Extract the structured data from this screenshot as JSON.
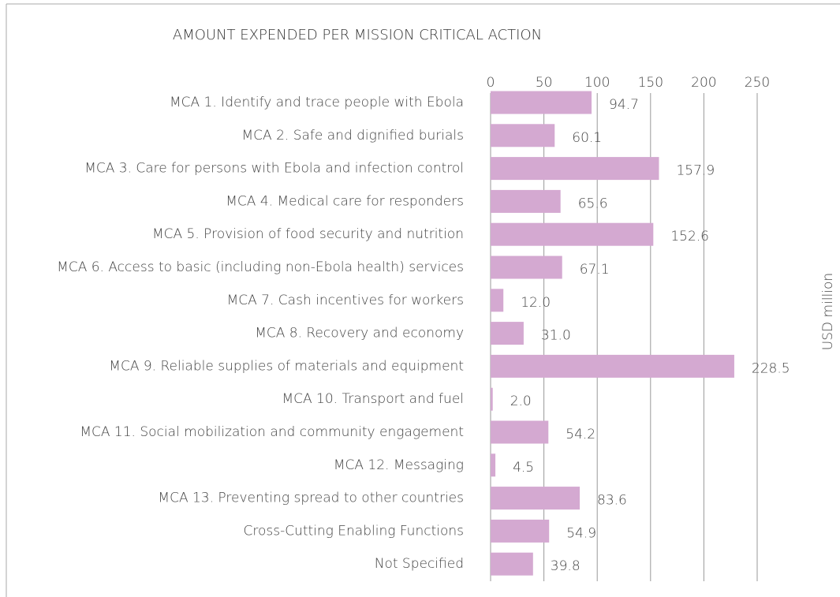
{
  "chart_data": {
    "type": "bar",
    "orientation": "horizontal",
    "title": "AMOUNT EXPENDED PER MISSION CRITICAL ACTION",
    "y_axis_label": "USD million",
    "categories": [
      "MCA 1. Identify and trace people with Ebola",
      "MCA 2. Safe and dignified burials",
      "MCA 3. Care for persons with Ebola and infection control",
      "MCA 4. Medical care for responders",
      "MCA 5. Provision of food security and nutrition",
      "MCA 6. Access to basic (including non-Ebola health) services",
      "MCA 7. Cash incentives for workers",
      "MCA 8. Recovery and economy",
      "MCA 9. Reliable supplies of materials and equipment",
      "MCA 10. Transport and fuel",
      "MCA 11. Social mobilization and community engagement",
      "MCA 12. Messaging",
      "MCA 13. Preventing spread to other countries",
      "Cross-Cutting Enabling Functions",
      "Not Specified"
    ],
    "values": [
      94.7,
      60.1,
      157.9,
      65.6,
      152.6,
      67.1,
      12.0,
      31.0,
      228.5,
      2.0,
      54.2,
      4.5,
      83.6,
      54.9,
      39.8
    ],
    "value_labels": [
      "94.7",
      "60.1",
      "157.9",
      "65.6",
      "152.6",
      "67.1",
      "12.0",
      "31.0",
      "228.5",
      "2.0",
      "54.2",
      "4.5",
      "83.6",
      "54.9",
      "39.8"
    ],
    "color": "#d4a9d1",
    "xlim": [
      0,
      250
    ],
    "xticks": [
      0,
      50,
      100,
      150,
      200,
      250
    ],
    "grid": true
  }
}
